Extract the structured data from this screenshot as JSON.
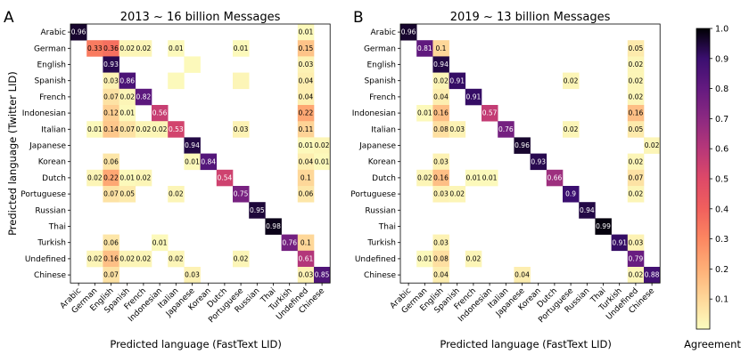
{
  "chart_data": {
    "type": "heatmap",
    "languages": [
      "Arabic",
      "German",
      "English",
      "Spanish",
      "French",
      "Indonesian",
      "Italian",
      "Japanese",
      "Korean",
      "Dutch",
      "Portuguese",
      "Russian",
      "Thai",
      "Turkish",
      "Undefined",
      "Chinese"
    ],
    "ylabel": "Predicted language (Twitter LID)",
    "colorbar": {
      "label": "Agreement",
      "range": [
        0,
        1.0
      ],
      "ticks": [
        "0.1",
        "0.2",
        "0.3",
        "0.4",
        "0.5",
        "0.6",
        "0.7",
        "0.8",
        "0.9",
        "1.0"
      ],
      "colormap": "magma_r"
    },
    "panels": [
      {
        "letter": "A",
        "title": "2013 ~ 16 billion Messages",
        "xlabel": "Predicted language (FastText LID)",
        "cells": [
          [
            0,
            0,
            0.96
          ],
          [
            0,
            14,
            0.01
          ],
          [
            1,
            1,
            0.33
          ],
          [
            1,
            2,
            0.36
          ],
          [
            1,
            3,
            0.02
          ],
          [
            1,
            4,
            0.02
          ],
          [
            1,
            6,
            0.01
          ],
          [
            1,
            10,
            0.01
          ],
          [
            1,
            14,
            0.15
          ],
          [
            2,
            2,
            0.93
          ],
          [
            2,
            14,
            0.03
          ],
          [
            3,
            2,
            0.03
          ],
          [
            3,
            3,
            0.86
          ],
          [
            3,
            14,
            0.04
          ],
          [
            4,
            2,
            0.07
          ],
          [
            4,
            3,
            0.02
          ],
          [
            4,
            4,
            0.82
          ],
          [
            4,
            14,
            0.04
          ],
          [
            5,
            2,
            0.12
          ],
          [
            5,
            3,
            0.01
          ],
          [
            5,
            5,
            0.56
          ],
          [
            5,
            14,
            0.22
          ],
          [
            6,
            1,
            0.01
          ],
          [
            6,
            2,
            0.14
          ],
          [
            6,
            3,
            0.07
          ],
          [
            6,
            4,
            0.02
          ],
          [
            6,
            5,
            0.02
          ],
          [
            6,
            6,
            0.53
          ],
          [
            6,
            10,
            0.03
          ],
          [
            6,
            14,
            0.11
          ],
          [
            7,
            7,
            0.94
          ],
          [
            7,
            14,
            0.01
          ],
          [
            7,
            15,
            0.02
          ],
          [
            8,
            2,
            0.06
          ],
          [
            8,
            7,
            0.01
          ],
          [
            8,
            8,
            0.84
          ],
          [
            8,
            14,
            0.04
          ],
          [
            8,
            15,
            0.01
          ],
          [
            9,
            1,
            0.02
          ],
          [
            9,
            2,
            0.22
          ],
          [
            9,
            3,
            0.01
          ],
          [
            9,
            4,
            0.02
          ],
          [
            9,
            9,
            0.54
          ],
          [
            9,
            14,
            0.1
          ],
          [
            10,
            2,
            0.07
          ],
          [
            10,
            3,
            0.05
          ],
          [
            10,
            6,
            0.02
          ],
          [
            10,
            10,
            0.75
          ],
          [
            10,
            14,
            0.06
          ],
          [
            11,
            11,
            0.95
          ],
          [
            12,
            12,
            0.98
          ],
          [
            13,
            2,
            0.06
          ],
          [
            13,
            5,
            0.01
          ],
          [
            13,
            13,
            0.76
          ],
          [
            13,
            14,
            0.1
          ],
          [
            14,
            1,
            0.02
          ],
          [
            14,
            2,
            0.16
          ],
          [
            14,
            3,
            0.02
          ],
          [
            14,
            4,
            0.02
          ],
          [
            14,
            6,
            0.02
          ],
          [
            14,
            10,
            0.02
          ],
          [
            14,
            14,
            0.61
          ],
          [
            15,
            2,
            0.07
          ],
          [
            15,
            7,
            0.03
          ],
          [
            15,
            14,
            0.03
          ],
          [
            15,
            15,
            0.85
          ]
        ],
        "extra_cells": [
          [
            2,
            7,
            0.01
          ],
          [
            3,
            6,
            0.01
          ],
          [
            3,
            10,
            0.02
          ]
        ]
      },
      {
        "letter": "B",
        "title": "2019 ~ 13 billion Messages",
        "xlabel": "Predicted language (FastText LID)",
        "cells": [
          [
            0,
            0,
            0.96
          ],
          [
            1,
            1,
            0.81
          ],
          [
            1,
            2,
            0.1
          ],
          [
            1,
            14,
            0.05
          ],
          [
            2,
            2,
            0.94
          ],
          [
            2,
            14,
            0.02
          ],
          [
            3,
            2,
            0.02
          ],
          [
            3,
            3,
            0.91
          ],
          [
            3,
            10,
            0.02
          ],
          [
            3,
            14,
            0.02
          ],
          [
            4,
            2,
            0.04
          ],
          [
            4,
            4,
            0.91
          ],
          [
            4,
            14,
            0.02
          ],
          [
            5,
            1,
            0.01
          ],
          [
            5,
            2,
            0.16
          ],
          [
            5,
            5,
            0.57
          ],
          [
            5,
            14,
            0.16
          ],
          [
            6,
            2,
            0.08
          ],
          [
            6,
            3,
            0.03
          ],
          [
            6,
            6,
            0.76
          ],
          [
            6,
            10,
            0.02
          ],
          [
            6,
            14,
            0.05
          ],
          [
            7,
            7,
            0.96
          ],
          [
            7,
            15,
            0.02
          ],
          [
            8,
            2,
            0.03
          ],
          [
            8,
            8,
            0.93
          ],
          [
            8,
            14,
            0.02
          ],
          [
            9,
            1,
            0.02
          ],
          [
            9,
            2,
            0.16
          ],
          [
            9,
            4,
            0.01
          ],
          [
            9,
            5,
            0.01
          ],
          [
            9,
            9,
            0.66
          ],
          [
            9,
            14,
            0.07
          ],
          [
            10,
            2,
            0.03
          ],
          [
            10,
            3,
            0.02
          ],
          [
            10,
            10,
            0.9
          ],
          [
            10,
            14,
            0.02
          ],
          [
            11,
            11,
            0.94
          ],
          [
            12,
            12,
            0.99
          ],
          [
            13,
            2,
            0.03
          ],
          [
            13,
            13,
            0.91
          ],
          [
            13,
            14,
            0.03
          ],
          [
            14,
            1,
            0.01
          ],
          [
            14,
            2,
            0.08
          ],
          [
            14,
            4,
            0.02
          ],
          [
            14,
            14,
            0.79
          ],
          [
            15,
            2,
            0.04
          ],
          [
            15,
            7,
            0.04
          ],
          [
            15,
            14,
            0.02
          ],
          [
            15,
            15,
            0.88
          ]
        ],
        "extra_cells": []
      }
    ]
  }
}
